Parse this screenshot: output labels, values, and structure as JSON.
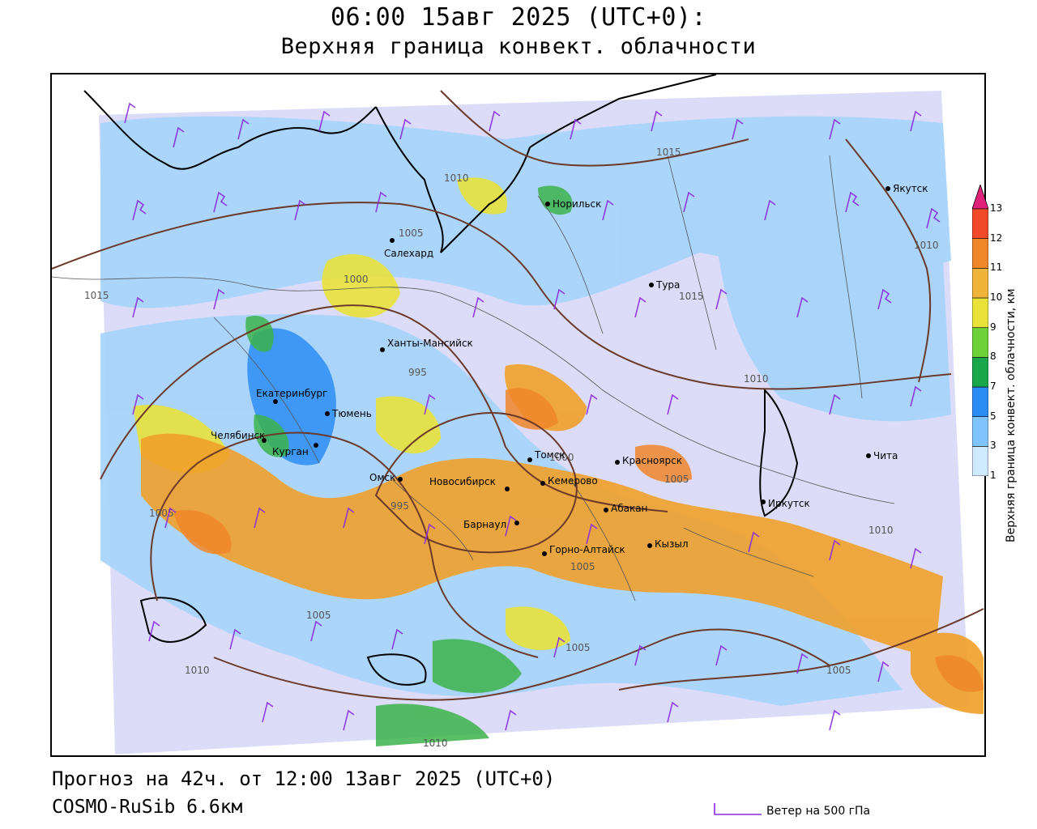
{
  "header": {
    "title_line1": "06:00 15авг 2025 (UTC+0):",
    "title_line2": "Верхняя граница конвект. облачности"
  },
  "footer": {
    "forecast": "Прогноз на 42ч. от 12:00 13авг 2025 (UTC+0)",
    "model": "COSMO-RuSib 6.6км",
    "wind_legend": "Ветер на 500 гПа"
  },
  "colorbar": {
    "title": "Верхняя граница конвект. облачности, км",
    "ticks": [
      "1",
      "3",
      "5",
      "7",
      "8",
      "9",
      "10",
      "11",
      "12",
      "13"
    ],
    "colors": [
      "#cfe9ff",
      "#7fc4ff",
      "#2b8cf5",
      "#1aa64a",
      "#6fd13a",
      "#e8e23a",
      "#f0b43a",
      "#f0862a",
      "#f04a2a",
      "#e0207a"
    ]
  },
  "map": {
    "background_color": "#dcdcf8",
    "cities": [
      {
        "name": "Норильск"
      },
      {
        "name": "Якутск"
      },
      {
        "name": "Салехард"
      },
      {
        "name": "Тура"
      },
      {
        "name": "Ханты-Мансийск"
      },
      {
        "name": "Екатеринбург"
      },
      {
        "name": "Тюмень"
      },
      {
        "name": "Челябинск"
      },
      {
        "name": "Курган"
      },
      {
        "name": "Омск"
      },
      {
        "name": "Новосибирск"
      },
      {
        "name": "Томск"
      },
      {
        "name": "Кемерово"
      },
      {
        "name": "Красноярск"
      },
      {
        "name": "Абакан"
      },
      {
        "name": "Барнаул"
      },
      {
        "name": "Горно-Алтайск"
      },
      {
        "name": "Кызыл"
      },
      {
        "name": "Иркутск"
      },
      {
        "name": "Чита"
      }
    ],
    "isobar_labels": [
      "1015",
      "1010",
      "1005",
      "1000",
      "995",
      "1015",
      "1015",
      "1010",
      "1005",
      "995",
      "1000",
      "1005",
      "1005",
      "1010",
      "1010",
      "1005",
      "1005",
      "1005",
      "1010",
      "1010"
    ]
  }
}
